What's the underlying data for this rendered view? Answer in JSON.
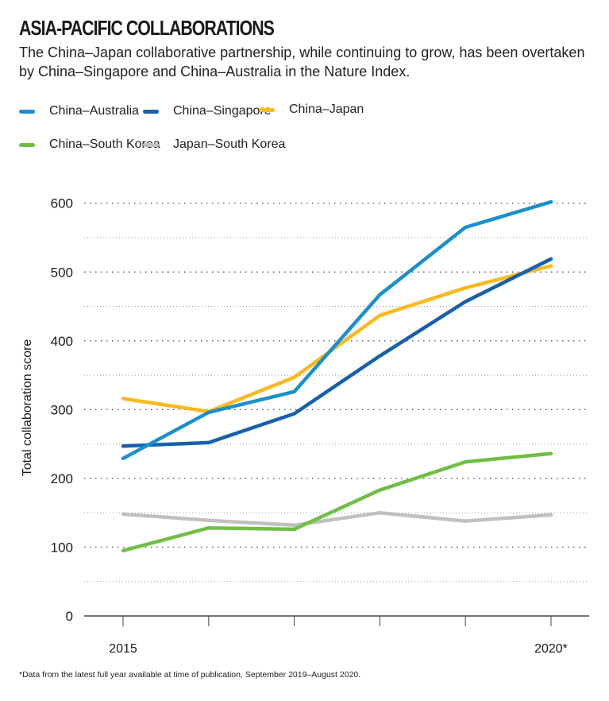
{
  "chart_data": {
    "type": "line",
    "title": "ASIA-PACIFIC COLLABORATIONS",
    "subtitle": "The China–Japan collaborative partnership, while continuing to grow, has been overtaken by China–Singapore and China–Australia in the Nature Index.",
    "xlabel": "",
    "ylabel": "Total collaboration score",
    "x": [
      2015,
      2016,
      2017,
      2018,
      2019,
      2020
    ],
    "x_tick_labels": [
      "2015",
      "",
      "",
      "",
      "",
      "2020*"
    ],
    "y_ticks": [
      0,
      100,
      200,
      300,
      400,
      500,
      600
    ],
    "y_tick_labels": [
      "0",
      "100",
      "200",
      "300",
      "400",
      "500",
      "600"
    ],
    "ylim": [
      0,
      620
    ],
    "grid": true,
    "legend_position": "top-left",
    "series": [
      {
        "name": "China–Australia",
        "color": "#1a8fce",
        "values": [
          229,
          296,
          326,
          467,
          565,
          602
        ]
      },
      {
        "name": "China–Singapore",
        "color": "#1760ad",
        "values": [
          247,
          252,
          294,
          378,
          457,
          519
        ]
      },
      {
        "name": "China–Japan",
        "color": "#fbb91c",
        "values": [
          316,
          297,
          347,
          437,
          477,
          509
        ]
      },
      {
        "name": "China–South Korea",
        "color": "#6fbf44",
        "values": [
          95,
          128,
          126,
          183,
          224,
          236
        ]
      },
      {
        "name": "Japan–South Korea",
        "color": "#c0c0c0",
        "values": [
          148,
          139,
          132,
          150,
          138,
          147
        ]
      }
    ],
    "footnote": "*Data from the latest full year available at time of publication, September 2019–August 2020."
  }
}
